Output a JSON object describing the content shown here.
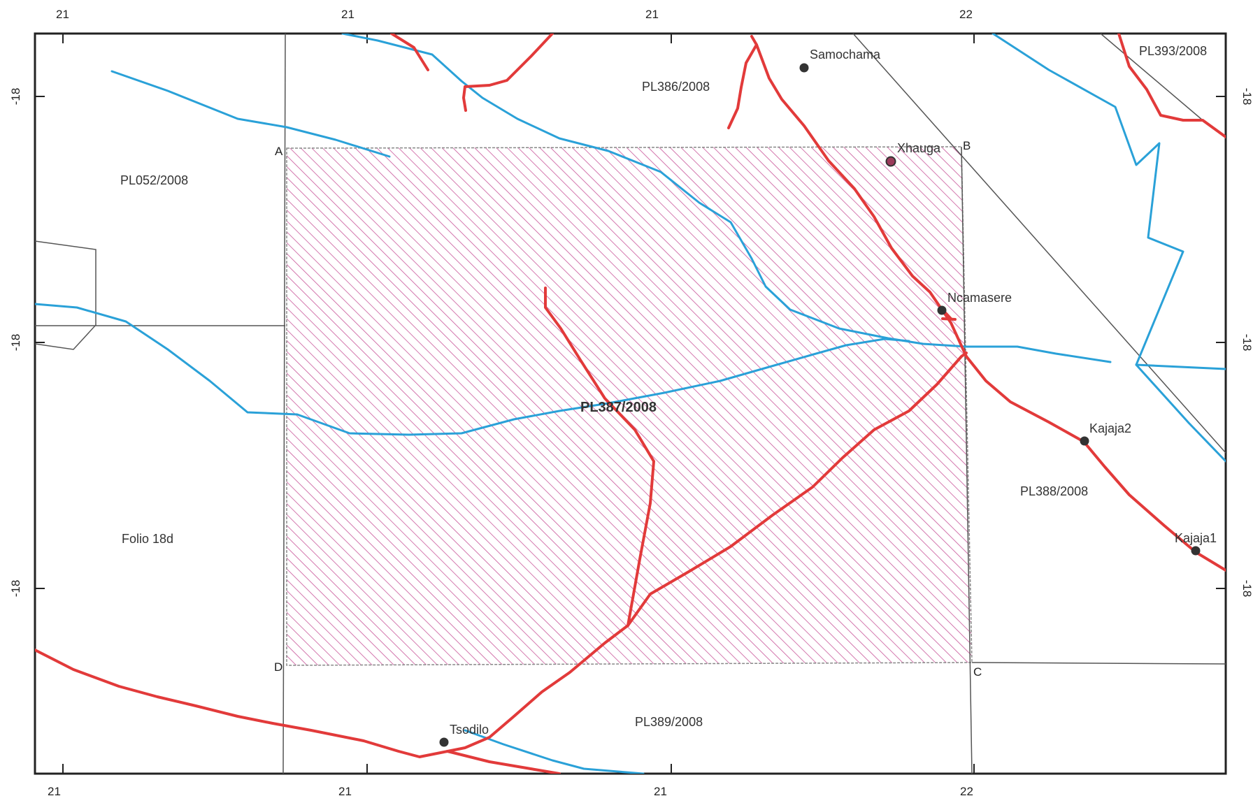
{
  "colors": {
    "river": "#2aa1d8",
    "road": "#e23a3a",
    "hatch": "#c9579a",
    "boundary": "#555555",
    "town": "#333333"
  },
  "axes": {
    "top": [
      "21",
      "21",
      "21",
      "22"
    ],
    "bottom": [
      "21",
      "21",
      "21",
      "22"
    ],
    "left": [
      "-18",
      "-18",
      "-18"
    ],
    "right": [
      "-18",
      "-18",
      "-18"
    ]
  },
  "licences": {
    "main": "PL387/2008",
    "pl386": "PL386/2008",
    "pl393": "PL393/2008",
    "pl052": "PL052/2008",
    "pl388": "PL388/2008",
    "pl389": "PL389/2008",
    "folio": "Folio 18d"
  },
  "corners": {
    "a": "A",
    "b": "B",
    "c": "C",
    "d": "D"
  },
  "towns": {
    "samochama": "Samochama",
    "xhauga": "Xhauga",
    "ncamasere": "Ncamasere",
    "kajaja2": "Kajaja2",
    "kajaja1": "Kajaja1",
    "tsodilo": "Tsodilo"
  }
}
